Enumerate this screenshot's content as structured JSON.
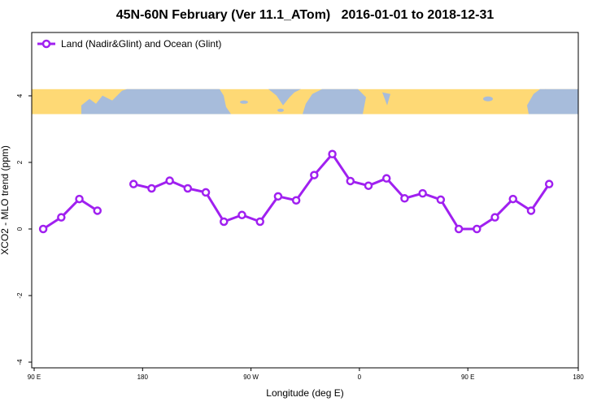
{
  "chart_data": {
    "type": "line",
    "title": "45N-60N February (Ver 11.1_ATom)   2016-01-01 to 2018-12-31",
    "xlabel": "Longitude (deg E)",
    "ylabel": "XCO2 - MLO trend (ppm)",
    "xlim": [
      90,
      450
    ],
    "ylim": [
      -4,
      6
    ],
    "x_ticks": [
      {
        "value": 90,
        "label": "90 E"
      },
      {
        "value": 180,
        "label": "180"
      },
      {
        "value": 270,
        "label": "90 W"
      },
      {
        "value": 360,
        "label": "0"
      },
      {
        "value": 450,
        "label": "90 E"
      },
      {
        "value": 540,
        "label": "180"
      }
    ],
    "y_ticks": [
      -4,
      -2,
      0,
      2,
      4
    ],
    "legend": {
      "placement": "top-left"
    },
    "series": [
      {
        "name": "Land (Nadir&Glint) and Ocean (Glint)",
        "color": "#a020f0",
        "marker": "open-circle",
        "segments": [
          {
            "x": [
              97.5,
              112.5,
              127.5,
              142.5
            ],
            "y": [
              0.0,
              0.35,
              0.9,
              0.55
            ]
          },
          {
            "x": [
              172.5,
              187.5,
              202.5,
              217.5,
              232.5,
              247.5,
              262.5,
              277.5,
              292.5,
              307.5,
              322.5,
              337.5,
              352.5,
              367.5,
              382.5,
              397.5,
              412.5,
              427.5,
              442.5,
              457.5,
              472.5,
              487.5,
              502.5,
              517.5
            ],
            "y": [
              1.35,
              1.22,
              1.45,
              1.22,
              1.1,
              0.22,
              0.42,
              0.22,
              0.98,
              0.86,
              1.62,
              2.25,
              1.44,
              1.3,
              1.52,
              0.92,
              1.07,
              0.88,
              0.0,
              0.0,
              0.35,
              0.9,
              0.55,
              1.35
            ]
          }
        ]
      }
    ],
    "map_strip": {
      "ocean_color": "#a7bcdb",
      "land_color": "#fed975",
      "y_range": [
        3.45,
        4.2
      ]
    }
  }
}
